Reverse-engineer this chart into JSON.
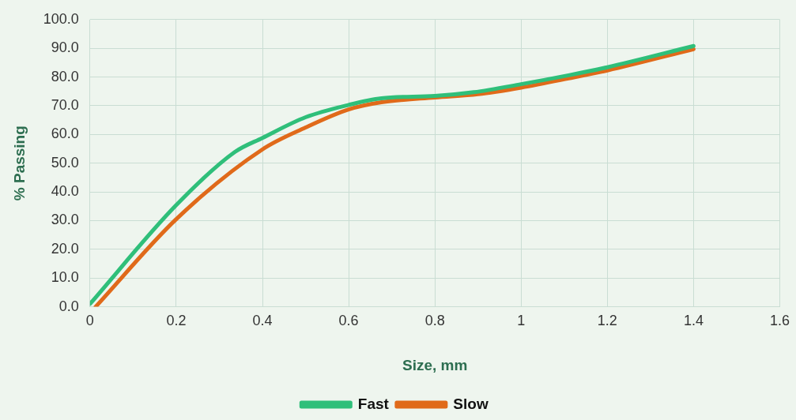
{
  "chart_data": {
    "type": "line",
    "xlabel": "Size, mm",
    "ylabel": "% Passing",
    "series": [
      {
        "name": "Fast",
        "color": "#2fbf7a",
        "x": [
          0,
          0.2,
          0.336,
          0.4,
          0.5,
          0.6,
          0.676,
          0.8,
          0.89,
          1.0,
          1.11,
          1.2,
          1.4
        ],
        "values": [
          1,
          35.4,
          53.9,
          58.8,
          66,
          70.3,
          72.6,
          73.4,
          74.7,
          77.5,
          80.6,
          83.4,
          90.8
        ]
      },
      {
        "name": "Slow",
        "color": "#e06a1a",
        "x": [
          0.013,
          0.2,
          0.4,
          0.5,
          0.6,
          0.676,
          0.8,
          0.9,
          1.0,
          1.11,
          1.2,
          1.4
        ],
        "values": [
          0,
          30.5,
          54.8,
          62.4,
          68.7,
          71.2,
          72.9,
          74,
          76.3,
          79.5,
          82.3,
          89.7
        ]
      }
    ],
    "xlim": [
      0,
      1.6
    ],
    "xticks": [
      0,
      0.2,
      0.4,
      0.6,
      0.8,
      1,
      1.2,
      1.4,
      1.6
    ],
    "ylim": [
      0,
      100
    ],
    "yticks": [
      {
        "value": 0,
        "label": "0.0"
      },
      {
        "value": 10,
        "label": "10.0"
      },
      {
        "value": 20,
        "label": "20.0"
      },
      {
        "value": 30,
        "label": "30.0"
      },
      {
        "value": 40,
        "label": "40.0"
      },
      {
        "value": 50,
        "label": "50.0"
      },
      {
        "value": 60,
        "label": "60.0"
      },
      {
        "value": 70,
        "label": "70.0"
      },
      {
        "value": 80,
        "label": "80.0"
      },
      {
        "value": 90,
        "label": "90.0"
      },
      {
        "value": 100,
        "label": "100.0"
      }
    ],
    "grid": true,
    "legend": "bottom",
    "marker": "none",
    "line_style": "solid"
  }
}
